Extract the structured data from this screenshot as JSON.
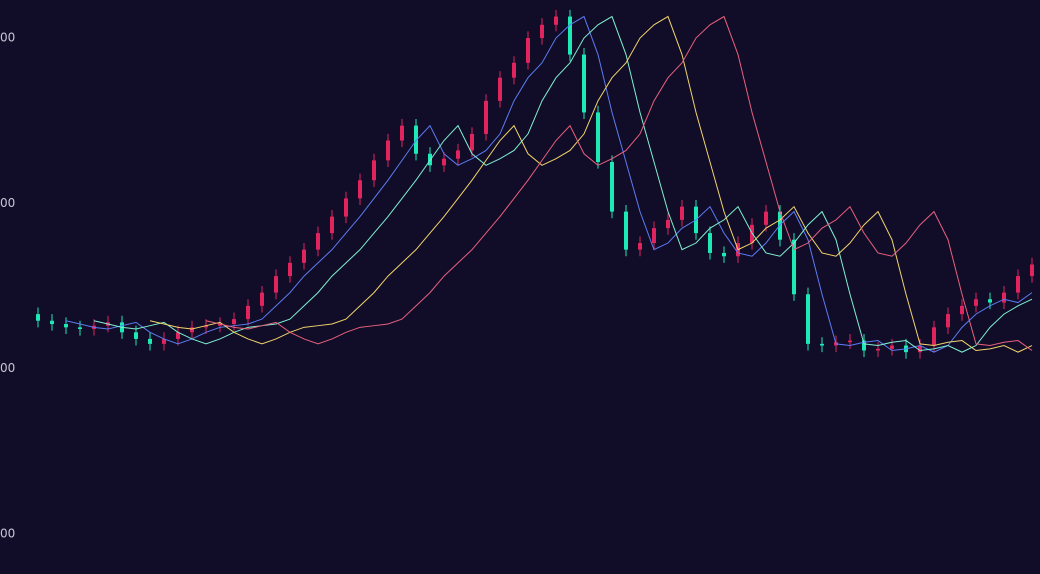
{
  "chart_data": {
    "type": "candlestick",
    "up_color": "#e0245e",
    "down_color": "#1de9b6",
    "ylim": [
      758,
      4230
    ],
    "yticks": [
      {
        "value": 4000,
        "label": "00"
      },
      {
        "value": 3000,
        "label": "00"
      },
      {
        "value": 2000,
        "label": "00"
      },
      {
        "value": 1000,
        "label": "00"
      }
    ],
    "open": [
      2330,
      2290,
      2270,
      2250,
      2240,
      2260,
      2280,
      2220,
      2180,
      2150,
      2180,
      2220,
      2250,
      2260,
      2270,
      2300,
      2380,
      2460,
      2560,
      2640,
      2720,
      2820,
      2920,
      3030,
      3140,
      3260,
      3380,
      3470,
      3300,
      3230,
      3270,
      3320,
      3420,
      3620,
      3760,
      3850,
      4000,
      4080,
      4130,
      3900,
      3550,
      3250,
      2950,
      2720,
      2760,
      2850,
      2900,
      2980,
      2820,
      2700,
      2680,
      2760,
      2870,
      2950,
      2780,
      2450,
      2150,
      2140,
      2160,
      2170,
      2110,
      2120,
      2140,
      2100,
      2140,
      2250,
      2330,
      2380,
      2420,
      2400,
      2460,
      2560
    ],
    "high": [
      2370,
      2330,
      2310,
      2290,
      2300,
      2320,
      2320,
      2260,
      2220,
      2220,
      2260,
      2290,
      2300,
      2310,
      2340,
      2420,
      2500,
      2600,
      2680,
      2760,
      2860,
      2960,
      3070,
      3180,
      3300,
      3420,
      3510,
      3510,
      3340,
      3310,
      3360,
      3460,
      3660,
      3800,
      3890,
      4040,
      4120,
      4170,
      4170,
      3940,
      3590,
      3290,
      2990,
      2800,
      2890,
      2940,
      3020,
      3020,
      2860,
      2740,
      2800,
      2910,
      2990,
      2990,
      2820,
      2490,
      2190,
      2200,
      2210,
      2210,
      2160,
      2180,
      2180,
      2180,
      2290,
      2370,
      2420,
      2460,
      2460,
      2500,
      2600,
      2670
    ],
    "low": [
      2250,
      2230,
      2210,
      2200,
      2200,
      2220,
      2180,
      2140,
      2110,
      2110,
      2140,
      2180,
      2210,
      2220,
      2230,
      2260,
      2340,
      2420,
      2520,
      2600,
      2680,
      2780,
      2880,
      2990,
      3100,
      3220,
      3340,
      3260,
      3190,
      3190,
      3230,
      3280,
      3380,
      3580,
      3720,
      3810,
      3960,
      4040,
      3860,
      3510,
      3210,
      2910,
      2680,
      2680,
      2720,
      2810,
      2860,
      2780,
      2660,
      2640,
      2640,
      2720,
      2830,
      2740,
      2410,
      2110,
      2100,
      2100,
      2120,
      2070,
      2070,
      2080,
      2060,
      2060,
      2100,
      2210,
      2290,
      2340,
      2360,
      2360,
      2420,
      2520
    ],
    "close": [
      2290,
      2270,
      2250,
      2240,
      2260,
      2280,
      2220,
      2180,
      2150,
      2180,
      2220,
      2250,
      2260,
      2270,
      2300,
      2380,
      2460,
      2560,
      2640,
      2720,
      2820,
      2920,
      3030,
      3140,
      3260,
      3380,
      3470,
      3300,
      3230,
      3270,
      3320,
      3420,
      3620,
      3760,
      3850,
      4000,
      4080,
      4130,
      3900,
      3550,
      3250,
      2950,
      2720,
      2760,
      2850,
      2900,
      2980,
      2820,
      2700,
      2680,
      2760,
      2870,
      2950,
      2780,
      2450,
      2150,
      2140,
      2160,
      2170,
      2110,
      2120,
      2140,
      2100,
      2140,
      2250,
      2330,
      2380,
      2420,
      2400,
      2460,
      2560,
      2630
    ],
    "series": [
      {
        "color": "#5b7cf0",
        "values": [
          null,
          null,
          2290,
          2270,
          2250,
          2240,
          2260,
          2280,
          2220,
          2180,
          2150,
          2180,
          2220,
          2250,
          2260,
          2270,
          2300,
          2380,
          2460,
          2560,
          2640,
          2720,
          2820,
          2920,
          3030,
          3140,
          3260,
          3380,
          3470,
          3300,
          3230,
          3270,
          3320,
          3420,
          3620,
          3760,
          3850,
          4000,
          4080,
          4130,
          3900,
          3550,
          3250,
          2950,
          2720,
          2760,
          2850,
          2900,
          2980,
          2820,
          2700,
          2680,
          2760,
          2870,
          2950,
          2780,
          2450,
          2150,
          2140,
          2160,
          2170,
          2110,
          2120,
          2140,
          2100,
          2140,
          2250,
          2330,
          2380,
          2420,
          2400,
          2460
        ]
      },
      {
        "color": "#7ff0d0",
        "values": [
          null,
          null,
          null,
          null,
          2290,
          2270,
          2250,
          2240,
          2260,
          2280,
          2220,
          2180,
          2150,
          2180,
          2220,
          2250,
          2260,
          2270,
          2300,
          2380,
          2460,
          2560,
          2640,
          2720,
          2820,
          2920,
          3030,
          3140,
          3260,
          3380,
          3470,
          3300,
          3230,
          3270,
          3320,
          3420,
          3620,
          3760,
          3850,
          4000,
          4080,
          4130,
          3900,
          3550,
          3250,
          2950,
          2720,
          2760,
          2850,
          2900,
          2980,
          2820,
          2700,
          2680,
          2760,
          2870,
          2950,
          2780,
          2450,
          2150,
          2140,
          2160,
          2170,
          2110,
          2120,
          2140,
          2100,
          2140,
          2250,
          2330,
          2380,
          2420
        ]
      },
      {
        "color": "#f2d46a",
        "values": [
          null,
          null,
          null,
          null,
          null,
          null,
          null,
          null,
          2290,
          2270,
          2250,
          2240,
          2260,
          2280,
          2220,
          2180,
          2150,
          2180,
          2220,
          2250,
          2260,
          2270,
          2300,
          2380,
          2460,
          2560,
          2640,
          2720,
          2820,
          2920,
          3030,
          3140,
          3260,
          3380,
          3470,
          3300,
          3230,
          3270,
          3320,
          3420,
          3620,
          3760,
          3850,
          4000,
          4080,
          4130,
          3900,
          3550,
          3250,
          2950,
          2720,
          2760,
          2850,
          2900,
          2980,
          2820,
          2700,
          2680,
          2760,
          2870,
          2950,
          2780,
          2450,
          2150,
          2140,
          2160,
          2170,
          2110,
          2120,
          2140,
          2100,
          2140
        ]
      },
      {
        "color": "#e8607c",
        "values": [
          null,
          null,
          null,
          null,
          null,
          null,
          null,
          null,
          null,
          null,
          null,
          null,
          2290,
          2270,
          2250,
          2240,
          2260,
          2280,
          2220,
          2180,
          2150,
          2180,
          2220,
          2250,
          2260,
          2270,
          2300,
          2380,
          2460,
          2560,
          2640,
          2720,
          2820,
          2920,
          3030,
          3140,
          3260,
          3380,
          3470,
          3300,
          3230,
          3270,
          3320,
          3420,
          3620,
          3760,
          3850,
          4000,
          4080,
          4130,
          3900,
          3550,
          3250,
          2950,
          2720,
          2760,
          2850,
          2900,
          2980,
          2820,
          2700,
          2680,
          2760,
          2870,
          2950,
          2780,
          2450,
          2150,
          2140,
          2160,
          2170,
          2110
        ]
      }
    ]
  }
}
